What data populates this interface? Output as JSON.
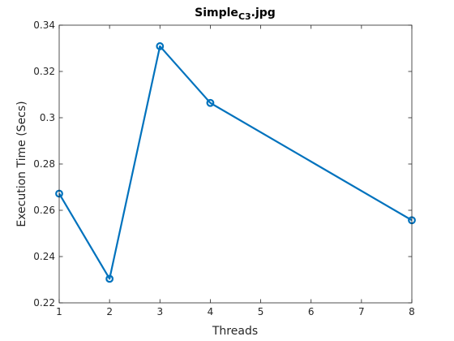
{
  "chart_data": {
    "type": "line",
    "title": "Simple",
    "title_subscript": "C3",
    "title_suffix": ".jpg",
    "xlabel": "Threads",
    "ylabel": "Execution Time (Secs)",
    "xlim": [
      1,
      8
    ],
    "ylim": [
      0.22,
      0.34
    ],
    "xticks": [
      1,
      2,
      3,
      4,
      5,
      6,
      7,
      8
    ],
    "yticks": [
      0.22,
      0.24,
      0.26,
      0.28,
      0.3,
      0.32,
      0.34
    ],
    "ytick_labels": [
      "0.22",
      "0.24",
      "0.26",
      "0.28",
      "0.3",
      "0.32",
      "0.34"
    ],
    "grid": false,
    "series": [
      {
        "x": [
          1,
          2,
          3,
          4,
          8
        ],
        "y": [
          0.2672,
          0.2304,
          0.3309,
          0.3064,
          0.2557
        ],
        "color": "#0072BD",
        "marker": "circle"
      }
    ]
  }
}
